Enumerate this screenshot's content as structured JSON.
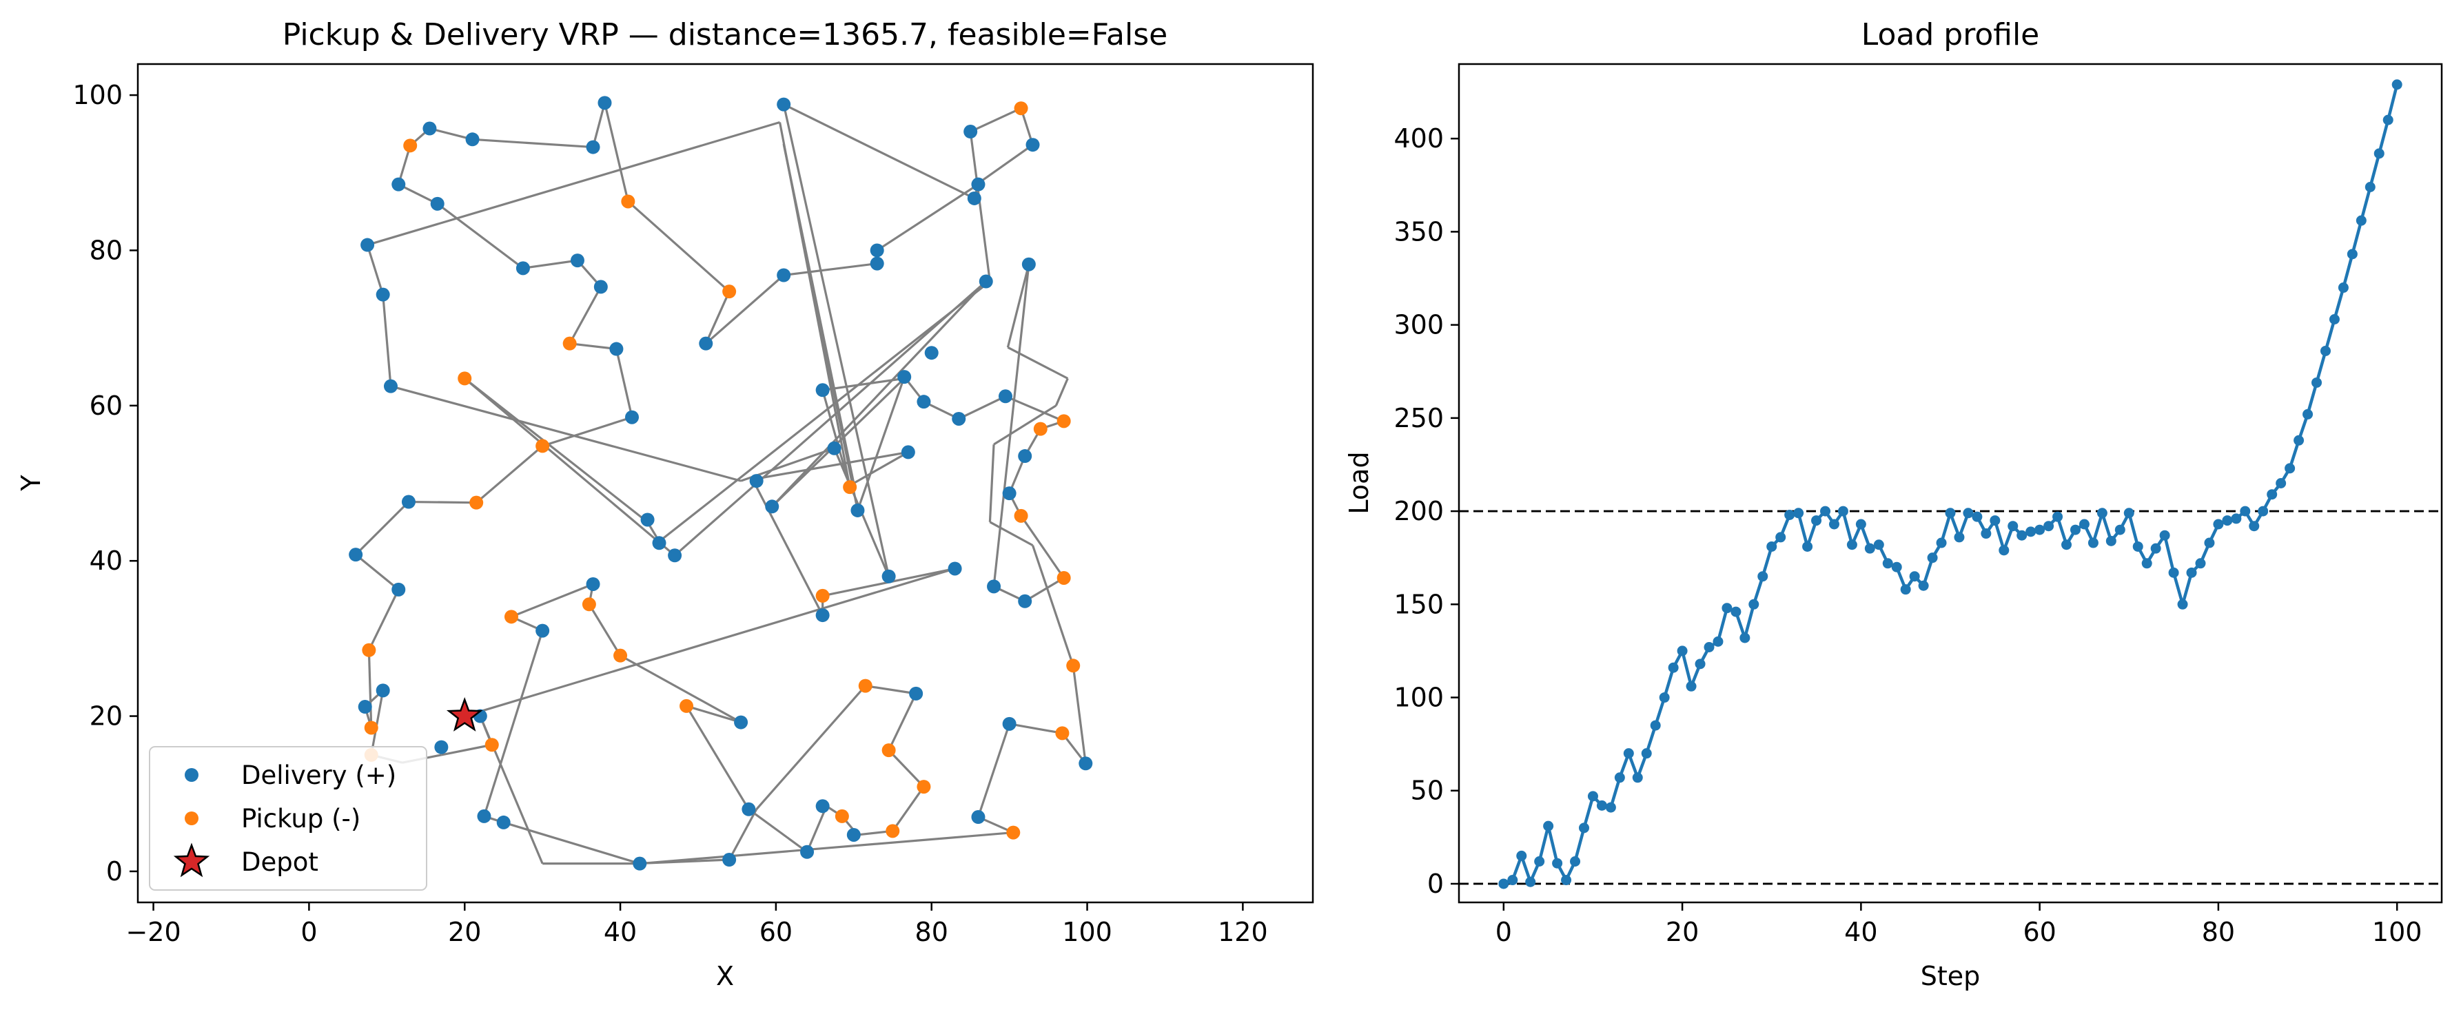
{
  "colors": {
    "delivery": "#1f77b4",
    "pickup": "#ff7f0e",
    "depot": "#d62728",
    "route": "#808080",
    "load_line": "#1f77b4"
  },
  "chart_data": [
    {
      "type": "scatter",
      "title": "Pickup & Delivery VRP — distance=1365.7, feasible=False",
      "xlabel": "X",
      "ylabel": "Y",
      "xlim": [
        -22,
        129
      ],
      "ylim": [
        -4,
        104
      ],
      "xticks": [
        -20,
        0,
        20,
        40,
        60,
        80,
        100,
        120
      ],
      "yticks": [
        0,
        20,
        40,
        60,
        80,
        100
      ],
      "grid": false,
      "legend": {
        "placement": "lower-left",
        "entries": [
          "Delivery (+)",
          "Pickup (-)",
          "Depot"
        ]
      },
      "depot": [
        20,
        20
      ],
      "route": [
        [
          20,
          20
        ],
        [
          83,
          39
        ],
        [
          66,
          35.5
        ],
        [
          66,
          33
        ],
        [
          57,
          50.5
        ],
        [
          77,
          54
        ],
        [
          70,
          50
        ],
        [
          61,
          93.7
        ],
        [
          70.5,
          46.5
        ],
        [
          76.5,
          63.7
        ],
        [
          79,
          60.5
        ],
        [
          83.5,
          58.3
        ],
        [
          89.5,
          61.2
        ],
        [
          97,
          58
        ],
        [
          94,
          57
        ],
        [
          92,
          53.5
        ],
        [
          90,
          48.7
        ],
        [
          91.5,
          45.8
        ],
        [
          97,
          37.8
        ],
        [
          92,
          34.8
        ],
        [
          88,
          36.7
        ],
        [
          92.5,
          78.2
        ],
        [
          89.8,
          67.5
        ],
        [
          97.5,
          63.5
        ],
        [
          96,
          60
        ],
        [
          88,
          55
        ],
        [
          87.5,
          45
        ],
        [
          93,
          42
        ],
        [
          98.2,
          26.5
        ],
        [
          99.8,
          13.9
        ],
        [
          96.8,
          17.8
        ],
        [
          90,
          19
        ],
        [
          86,
          7
        ],
        [
          90.5,
          5
        ],
        [
          42.5,
          1
        ],
        [
          25,
          6.3
        ],
        [
          22.5,
          7.1
        ],
        [
          30,
          31
        ],
        [
          26,
          32.8
        ],
        [
          36.5,
          37
        ],
        [
          36,
          34.4
        ],
        [
          40,
          27.8
        ],
        [
          55.5,
          19.2
        ],
        [
          48.5,
          21.3
        ],
        [
          56.5,
          8
        ],
        [
          64,
          2.5
        ],
        [
          66.5,
          8.4
        ],
        [
          68.5,
          7.1
        ],
        [
          70.5,
          4.7
        ],
        [
          75,
          5.2
        ],
        [
          79,
          10.9
        ],
        [
          74.5,
          15.6
        ],
        [
          78,
          22.9
        ],
        [
          71.5,
          23.9
        ],
        [
          57.5,
          8
        ],
        [
          54,
          1.5
        ],
        [
          42,
          1
        ],
        [
          30,
          1
        ],
        [
          22,
          20
        ],
        [
          23.5,
          16.3
        ],
        [
          17,
          15
        ],
        [
          12,
          14
        ],
        [
          8,
          15
        ],
        [
          9.5,
          23.3
        ],
        [
          7.2,
          21.2
        ],
        [
          8,
          18.5
        ],
        [
          7.7,
          28.5
        ],
        [
          11.5,
          36.3
        ],
        [
          6,
          40.8
        ],
        [
          12.8,
          47.6
        ],
        [
          21.5,
          47.5
        ],
        [
          30,
          54.8
        ],
        [
          41.5,
          58.5
        ],
        [
          39.5,
          67.3
        ],
        [
          33.5,
          68
        ],
        [
          37.5,
          75.3
        ],
        [
          34.5,
          78.7
        ],
        [
          27.5,
          77.7
        ],
        [
          16.5,
          86
        ],
        [
          11.5,
          88.5
        ],
        [
          13,
          93.5
        ],
        [
          15.5,
          95.7
        ],
        [
          21,
          94.3
        ],
        [
          36.5,
          93.3
        ],
        [
          38,
          99
        ],
        [
          41,
          86.3
        ],
        [
          54,
          74.7
        ],
        [
          51,
          68
        ],
        [
          61,
          76.8
        ],
        [
          73,
          78.3
        ],
        [
          73,
          80
        ],
        [
          86,
          88.5
        ],
        [
          85.5,
          86.7
        ],
        [
          61,
          98.8
        ],
        [
          74.5,
          38
        ],
        [
          67.5,
          54.5
        ],
        [
          55.5,
          50.3
        ],
        [
          10.5,
          62.5
        ],
        [
          9.5,
          74.3
        ],
        [
          7.5,
          80.7
        ],
        [
          60.5,
          96.5
        ],
        [
          69.5,
          49.5
        ],
        [
          66,
          62
        ],
        [
          76.5,
          63.5
        ],
        [
          59.5,
          47
        ],
        [
          87,
          76
        ],
        [
          47,
          40.7
        ],
        [
          20,
          63.5
        ],
        [
          43.5,
          45
        ],
        [
          45,
          42.5
        ],
        [
          87.5,
          76
        ],
        [
          85,
          95.3
        ],
        [
          91.5,
          98.3
        ],
        [
          93,
          93.6
        ],
        [
          85.8,
          88.5
        ]
      ],
      "deliveries": [
        [
          61,
          98.8
        ],
        [
          38,
          99
        ],
        [
          15.5,
          95.7
        ],
        [
          21,
          94.3
        ],
        [
          36.5,
          93.3
        ],
        [
          85,
          95.3
        ],
        [
          93,
          93.6
        ],
        [
          11.5,
          88.5
        ],
        [
          16.5,
          86
        ],
        [
          86,
          88.5
        ],
        [
          85.5,
          86.7
        ],
        [
          7.5,
          80.7
        ],
        [
          27.5,
          77.7
        ],
        [
          34.5,
          78.7
        ],
        [
          37.5,
          75.3
        ],
        [
          73,
          80
        ],
        [
          73,
          78.3
        ],
        [
          92.5,
          78.2
        ],
        [
          61,
          76.8
        ],
        [
          9.5,
          74.3
        ],
        [
          87,
          76
        ],
        [
          51,
          68
        ],
        [
          39.5,
          67.3
        ],
        [
          80,
          66.8
        ],
        [
          10.5,
          62.5
        ],
        [
          66,
          62
        ],
        [
          76.5,
          63.7
        ],
        [
          79,
          60.5
        ],
        [
          83.5,
          58.3
        ],
        [
          89.5,
          61.2
        ],
        [
          41.5,
          58.5
        ],
        [
          67.5,
          54.5
        ],
        [
          77,
          54
        ],
        [
          92,
          53.5
        ],
        [
          57.5,
          50.3
        ],
        [
          90,
          48.7
        ],
        [
          59.5,
          47
        ],
        [
          70.5,
          46.5
        ],
        [
          12.8,
          47.6
        ],
        [
          43.5,
          45.3
        ],
        [
          45,
          42.3
        ],
        [
          47,
          40.7
        ],
        [
          6,
          40.8
        ],
        [
          11.5,
          36.3
        ],
        [
          36.5,
          37
        ],
        [
          83,
          39
        ],
        [
          74.5,
          38
        ],
        [
          88,
          36.7
        ],
        [
          92,
          34.8
        ],
        [
          66,
          33
        ],
        [
          30,
          31
        ],
        [
          78,
          22.9
        ],
        [
          9.5,
          23.3
        ],
        [
          7.2,
          21.2
        ],
        [
          22,
          20
        ],
        [
          55.5,
          19.2
        ],
        [
          90,
          19
        ],
        [
          99.8,
          13.9
        ],
        [
          17,
          16
        ],
        [
          56.5,
          8
        ],
        [
          66,
          8.4
        ],
        [
          86,
          7
        ],
        [
          22.5,
          7.1
        ],
        [
          25,
          6.3
        ],
        [
          70,
          4.7
        ],
        [
          64,
          2.5
        ],
        [
          54,
          1.5
        ],
        [
          42.5,
          1
        ]
      ],
      "pickups": [
        [
          91.5,
          98.3
        ],
        [
          13,
          93.5
        ],
        [
          41,
          86.3
        ],
        [
          54,
          74.7
        ],
        [
          33.5,
          68
        ],
        [
          20,
          63.5
        ],
        [
          97,
          58
        ],
        [
          94,
          57
        ],
        [
          30,
          54.8
        ],
        [
          69.5,
          49.5
        ],
        [
          21.5,
          47.5
        ],
        [
          91.5,
          45.8
        ],
        [
          97,
          37.8
        ],
        [
          66,
          35.5
        ],
        [
          36,
          34.4
        ],
        [
          26,
          32.8
        ],
        [
          7.7,
          28.5
        ],
        [
          40,
          27.8
        ],
        [
          98.2,
          26.5
        ],
        [
          71.5,
          23.9
        ],
        [
          48.5,
          21.3
        ],
        [
          8,
          18.5
        ],
        [
          96.8,
          17.8
        ],
        [
          23.5,
          16.3
        ],
        [
          74.5,
          15.6
        ],
        [
          8,
          15
        ],
        [
          79,
          10.9
        ],
        [
          68.5,
          7.1
        ],
        [
          75,
          5.2
        ],
        [
          90.5,
          5
        ]
      ]
    },
    {
      "type": "line",
      "title": "Load profile",
      "xlabel": "Step",
      "ylabel": "Load",
      "xlim": [
        -5,
        105
      ],
      "ylim": [
        -10,
        440
      ],
      "xticks": [
        0,
        20,
        40,
        60,
        80,
        100
      ],
      "yticks": [
        0,
        50,
        100,
        150,
        200,
        250,
        300,
        350,
        400
      ],
      "grid": false,
      "hlines": [
        0,
        200
      ],
      "x": [
        0,
        1,
        2,
        3,
        4,
        5,
        6,
        7,
        8,
        9,
        10,
        11,
        12,
        13,
        14,
        15,
        16,
        17,
        18,
        19,
        20,
        21,
        22,
        23,
        24,
        25,
        26,
        27,
        28,
        29,
        30,
        31,
        32,
        33,
        34,
        35,
        36,
        37,
        38,
        39,
        40,
        41,
        42,
        43,
        44,
        45,
        46,
        47,
        48,
        49,
        50,
        51,
        52,
        53,
        54,
        55,
        56,
        57,
        58,
        59,
        60,
        61,
        62,
        63,
        64,
        65,
        66,
        67,
        68,
        69,
        70,
        71,
        72,
        73,
        74,
        75,
        76,
        77,
        78,
        79,
        80,
        81,
        82,
        83,
        84,
        85,
        86,
        87,
        88,
        89,
        90,
        91,
        92,
        93,
        94,
        95,
        96,
        97,
        98,
        99,
        100
      ],
      "values": [
        0,
        2,
        15,
        1,
        12,
        31,
        11,
        2,
        12,
        30,
        47,
        42,
        41,
        57,
        70,
        57,
        70,
        85,
        100,
        116,
        125,
        106,
        118,
        127,
        130,
        148,
        146,
        132,
        150,
        165,
        181,
        186,
        198,
        199,
        181,
        195,
        200,
        193,
        200,
        182,
        193,
        180,
        182,
        172,
        170,
        158,
        165,
        160,
        175,
        183,
        199,
        186,
        199,
        197,
        188,
        195,
        179,
        192,
        187,
        189,
        190,
        192,
        197,
        182,
        190,
        193,
        183,
        199,
        184,
        190,
        199,
        181,
        172,
        180,
        187,
        167,
        150,
        167,
        172,
        183,
        193,
        195,
        196,
        200,
        192,
        200,
        209,
        215,
        223,
        238,
        252,
        269,
        286,
        303,
        320,
        338,
        356,
        374,
        392,
        410,
        429
      ]
    }
  ]
}
